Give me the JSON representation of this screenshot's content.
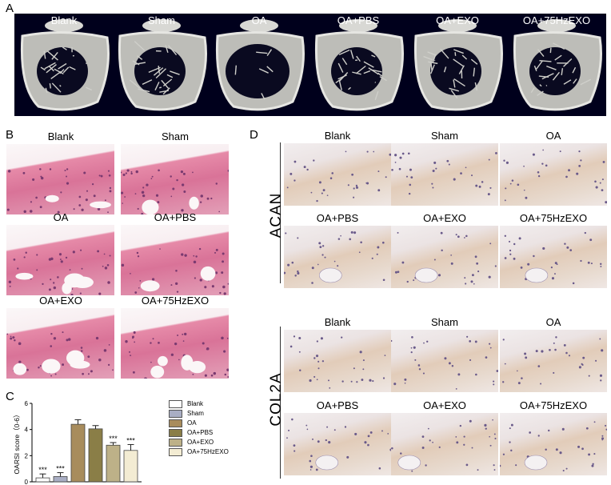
{
  "panel_a": {
    "letter": "A",
    "tiles": [
      {
        "label": "Blank"
      },
      {
        "label": "Sham"
      },
      {
        "label": "OA"
      },
      {
        "label": "OA+PBS"
      },
      {
        "label": "OA+EXO"
      },
      {
        "label": "OA+75HzEXO"
      }
    ]
  },
  "panel_b": {
    "letter": "B",
    "tiles": [
      {
        "label": "Blank"
      },
      {
        "label": "Sham"
      },
      {
        "label": "OA"
      },
      {
        "label": "OA+PBS"
      },
      {
        "label": "OA+EXO"
      },
      {
        "label": "OA+75HzEXO"
      }
    ]
  },
  "panel_d": {
    "letter": "D",
    "acan": {
      "row_label": "ACAN",
      "tiles": [
        {
          "label": "Blank"
        },
        {
          "label": "Sham"
        },
        {
          "label": "OA"
        },
        {
          "label": "OA+PBS"
        },
        {
          "label": "OA+EXO"
        },
        {
          "label": "OA+75HzEXO"
        }
      ]
    },
    "col2a": {
      "row_label": "COL2A",
      "tiles": [
        {
          "label": "Blank"
        },
        {
          "label": "Sham"
        },
        {
          "label": "OA"
        },
        {
          "label": "OA+PBS"
        },
        {
          "label": "OA+EXO"
        },
        {
          "label": "OA+75HzEXO"
        }
      ]
    }
  },
  "panel_c": {
    "letter": "C",
    "chart_data": {
      "type": "bar",
      "ylabel": "OARSI score（0-6）",
      "ylim": [
        0,
        6
      ],
      "yticks": [
        "0",
        "2",
        "4",
        "6"
      ],
      "categories": [
        "Blank",
        "Sham",
        "OA",
        "OA+PBS",
        "OA+EXO",
        "OA+75HzEXO"
      ],
      "values": [
        0.3,
        0.4,
        4.4,
        4.05,
        2.8,
        2.4
      ],
      "errors": [
        0.3,
        0.3,
        0.35,
        0.25,
        0.2,
        0.45
      ],
      "significance": [
        "***",
        "***",
        "",
        "",
        "***",
        "***"
      ],
      "colors": [
        "#ffffff",
        "#a9aec4",
        "#a88c5c",
        "#8a7e47",
        "#bdb188",
        "#f3ecd3"
      ],
      "legend_placement": "right"
    }
  }
}
